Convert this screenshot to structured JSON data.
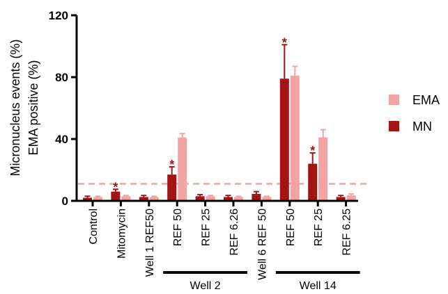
{
  "chart_data": {
    "type": "bar",
    "ylabel_lines": [
      "Micronucleus events (%)",
      "EMA positive (%)"
    ],
    "ylim": [
      0,
      120
    ],
    "yticks": [
      "0",
      "40",
      "80",
      "120"
    ],
    "categories": [
      "Control",
      "Mitomycin",
      "Well 1 REF50",
      "REF 50",
      "REF 25",
      "REF 6.26",
      "Well 6 REF 50",
      "REF 50",
      "REF 25",
      "REF 6.25"
    ],
    "groups": [
      {
        "label": "Well 2",
        "from": 3,
        "to": 5
      },
      {
        "label": "Well 14",
        "from": 7,
        "to": 9
      }
    ],
    "series": [
      {
        "name": "MN",
        "color": "#a31515",
        "values": [
          2,
          6,
          2.5,
          17,
          3,
          2.5,
          4.5,
          79,
          24,
          2.5
        ],
        "errors": [
          1,
          1.5,
          1,
          5,
          1,
          1,
          1.5,
          22,
          7,
          1
        ],
        "significant": [
          false,
          true,
          false,
          true,
          false,
          false,
          false,
          true,
          true,
          false
        ]
      },
      {
        "name": "EMA",
        "color": "#f4a3a3",
        "values": [
          2.5,
          3,
          2.5,
          41,
          3,
          2.5,
          2.5,
          81,
          41,
          3.5
        ],
        "errors": [
          0.5,
          0.5,
          0.5,
          2.5,
          0.5,
          0.5,
          0.5,
          6,
          5,
          1
        ],
        "significant": [
          false,
          false,
          false,
          false,
          false,
          false,
          false,
          false,
          false,
          false
        ]
      }
    ],
    "significance_marker": "*",
    "threshold_value": 11,
    "threshold_color": "#f4a3a3",
    "legend": {
      "position": "right",
      "order": [
        "EMA",
        "MN"
      ]
    }
  }
}
